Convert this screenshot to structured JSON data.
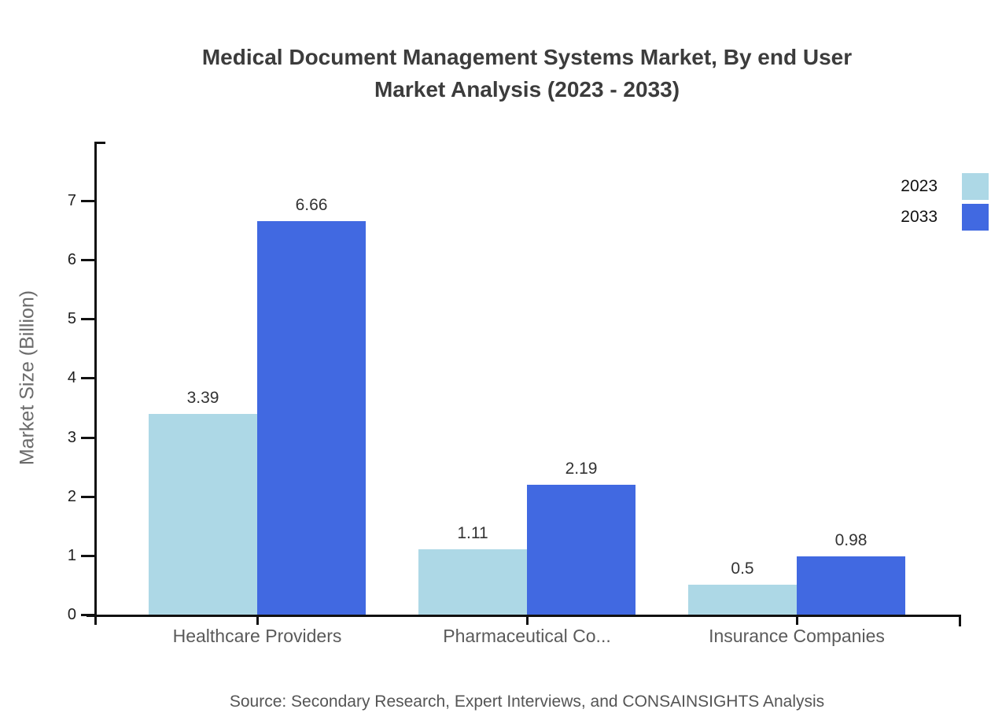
{
  "title": {
    "line1": "Medical Document Management Systems Market, By end User",
    "line2": "Market Analysis (2023 - 2033)"
  },
  "chart_data": {
    "type": "bar",
    "categories": [
      "Healthcare Providers",
      "Pharmaceutical Co...",
      "Insurance Companies"
    ],
    "series": [
      {
        "name": "2023",
        "color": "#add8e6",
        "values": [
          3.39,
          1.11,
          0.5
        ]
      },
      {
        "name": "2033",
        "color": "#4169e1",
        "values": [
          6.66,
          2.19,
          0.98
        ]
      }
    ],
    "ylabel": "Market Size (Billion)",
    "xlabel": "",
    "yticks": [
      0,
      1,
      2,
      3,
      4,
      5,
      6,
      7
    ],
    "ylim": [
      0,
      8
    ],
    "grid": false,
    "legend_position": "top-right",
    "value_labels_shown": true
  },
  "source": {
    "text": "Source: Secondary Research, Expert Interviews, and CONSAINSIGHTS Analysis"
  },
  "colors": {
    "background": "#ffffff",
    "axis": "#111111",
    "title_text": "#3c3c3c",
    "tick_label_text": "#1f1f1f",
    "category_label_text": "#5a5a5a",
    "axis_title_text": "#6b6b6b",
    "value_label_text": "#333333",
    "legend_label_text": "#111111",
    "source_text": "#555555"
  }
}
